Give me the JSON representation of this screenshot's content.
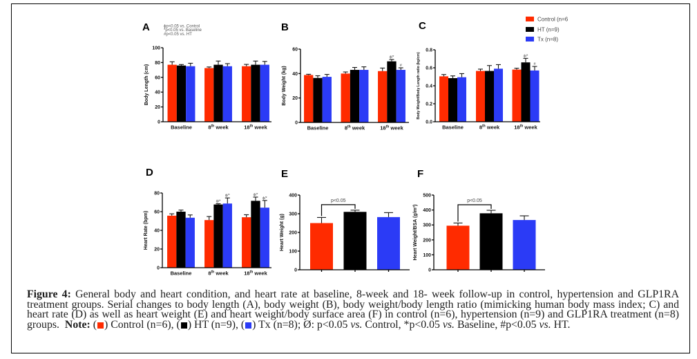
{
  "figure": {
    "legend": {
      "placement": "top-right",
      "items": [
        {
          "label": "Control (n=6",
          "color": "#ff2b00"
        },
        {
          "label": "HT (n=9)",
          "color": "#000000"
        },
        {
          "label": "Tx (n=8)",
          "color": "#2b3bf6"
        }
      ]
    }
  },
  "chart_data": [
    {
      "panel": "A",
      "type": "bar",
      "title": "A",
      "ylabel": "Body Length (cm)",
      "xlabel": "",
      "ylim": [
        0,
        100
      ],
      "yticks": [
        0,
        20,
        40,
        60,
        80,
        100
      ],
      "ytick_labels": [
        "0",
        "20",
        "40",
        "60",
        "80",
        "100"
      ],
      "grid": false,
      "categories": [
        {
          "label": "Baseline",
          "sup": "",
          "suffix": ""
        },
        {
          "label": "8",
          "sup": "th",
          "suffix": " week"
        },
        {
          "label": "18",
          "sup": "th",
          "suffix": " week"
        }
      ],
      "notes": [
        "ϕp<0.05 vs. Control",
        "*p<0.05 vs. Baseline",
        "#p<0.05 vs. HT"
      ],
      "series": [
        {
          "name": "Control (n=6)",
          "key": "control",
          "color": "#ff2b00",
          "values": [
            77,
            72.5,
            75
          ],
          "errors": [
            4,
            1.5,
            2.5
          ],
          "annotations": [
            "",
            "",
            ""
          ]
        },
        {
          "name": "HT (n=9)",
          "key": "ht",
          "color": "#000000",
          "values": [
            76,
            77,
            77
          ],
          "errors": [
            1.3,
            5,
            5
          ],
          "annotations": [
            "",
            "",
            ""
          ]
        },
        {
          "name": "Tx (n=8)",
          "key": "tx",
          "color": "#2b3bf6",
          "values": [
            75,
            75,
            77
          ],
          "errors": [
            4,
            3.5,
            4.5
          ],
          "annotations": [
            "",
            "",
            ""
          ]
        }
      ]
    },
    {
      "panel": "B",
      "type": "bar",
      "title": "B",
      "ylabel": "Body Weight (kg)",
      "xlabel": "",
      "ylim": [
        0,
        60
      ],
      "yticks": [
        0,
        20,
        40,
        60
      ],
      "ytick_labels": [
        "0",
        "20",
        "40",
        "60"
      ],
      "grid": false,
      "categories": [
        {
          "label": "Baseline",
          "sup": "",
          "suffix": ""
        },
        {
          "label": "8",
          "sup": "th",
          "suffix": " week"
        },
        {
          "label": "18",
          "sup": "th",
          "suffix": " week"
        }
      ],
      "series": [
        {
          "name": "Control (n=6)",
          "key": "control",
          "color": "#ff2b00",
          "values": [
            38.8,
            40,
            42
          ],
          "errors": [
            0.6,
            1.3,
            2.5
          ],
          "annotations": [
            "",
            "",
            ""
          ]
        },
        {
          "name": "HT (n=9)",
          "key": "ht",
          "color": "#000000",
          "values": [
            36.4,
            43,
            50
          ],
          "errors": [
            1.8,
            2,
            1.5
          ],
          "annotations": [
            "",
            "",
            "ϕ/*"
          ]
        },
        {
          "name": "Tx (n=8)",
          "key": "tx",
          "color": "#2b3bf6",
          "values": [
            37.3,
            43,
            43
          ],
          "errors": [
            2,
            2.5,
            1.7
          ],
          "annotations": [
            "",
            "",
            "#"
          ]
        }
      ]
    },
    {
      "panel": "C",
      "type": "bar",
      "title": "C",
      "ylabel": "Body Weight/Body Length ratio (kg/cm)",
      "xlabel": "",
      "ylim": [
        0,
        0.8
      ],
      "yticks": [
        0,
        0.2,
        0.4,
        0.6,
        0.8
      ],
      "ytick_labels": [
        "0.0",
        "0.2",
        "0.4",
        "0.6",
        "0.8"
      ],
      "grid": false,
      "categories": [
        {
          "label": "Baseline",
          "sup": "",
          "suffix": ""
        },
        {
          "label": "8",
          "sup": "th",
          "suffix": " week"
        },
        {
          "label": "18",
          "sup": "th",
          "suffix": " week"
        }
      ],
      "series": [
        {
          "name": "Control (n=6)",
          "key": "control",
          "color": "#ff2b00",
          "values": [
            0.505,
            0.565,
            0.58
          ],
          "errors": [
            0.02,
            0.02,
            0.015
          ],
          "annotations": [
            "",
            "",
            ""
          ]
        },
        {
          "name": "HT (n=9)",
          "key": "ht",
          "color": "#000000",
          "values": [
            0.485,
            0.565,
            0.66
          ],
          "errors": [
            0.025,
            0.06,
            0.045
          ],
          "annotations": [
            "",
            "",
            "ϕ/*"
          ]
        },
        {
          "name": "Tx (n=8)",
          "key": "tx",
          "color": "#2b3bf6",
          "values": [
            0.495,
            0.59,
            0.57
          ],
          "errors": [
            0.04,
            0.045,
            0.045
          ],
          "annotations": [
            "",
            "",
            "#"
          ]
        }
      ]
    },
    {
      "panel": "D",
      "type": "bar",
      "title": "D",
      "ylabel": "Heart Rate (bpm)",
      "xlabel": "",
      "ylim": [
        0,
        80
      ],
      "yticks": [
        0,
        20,
        40,
        60,
        80
      ],
      "ytick_labels": [
        "0",
        "20",
        "40",
        "60",
        "80"
      ],
      "grid": false,
      "categories": [
        {
          "label": "Baseline",
          "sup": "",
          "suffix": ""
        },
        {
          "label": "8",
          "sup": "th",
          "suffix": " week"
        },
        {
          "label": "18",
          "sup": "th",
          "suffix": " week"
        }
      ],
      "series": [
        {
          "name": "Control (n=6)",
          "key": "control",
          "color": "#ff2b00",
          "values": [
            55.7,
            51,
            54
          ],
          "errors": [
            2,
            3.8,
            2.7
          ],
          "annotations": [
            "",
            "",
            ""
          ]
        },
        {
          "name": "HT (n=9)",
          "key": "ht",
          "color": "#000000",
          "values": [
            60,
            67.7,
            71.6
          ],
          "errors": [
            1.7,
            0.8,
            4
          ],
          "annotations": [
            "",
            "ϕ/*",
            "ϕ/*"
          ]
        },
        {
          "name": "Tx (n=8)",
          "key": "tx",
          "color": "#2b3bf6",
          "values": [
            53.5,
            68.7,
            64.3
          ],
          "errors": [
            3,
            6,
            7.7
          ],
          "annotations": [
            "",
            "ϕ/*",
            "ϕ/*"
          ]
        }
      ]
    },
    {
      "panel": "E",
      "type": "bar",
      "title": "E",
      "ylabel": "Heart Weight (g)",
      "xlabel": "",
      "ylim": [
        0,
        400
      ],
      "yticks": [
        0,
        100,
        200,
        300,
        400
      ],
      "ytick_labels": [
        "0",
        "100",
        "200",
        "300",
        "400"
      ],
      "grid": false,
      "categories": [],
      "bracket": {
        "from": 0,
        "to": 1,
        "label": "p<0.05"
      },
      "series": [
        {
          "name": "Control (n=6)",
          "key": "control",
          "color": "#ff2b00",
          "values": [
            250
          ],
          "errors": [
            30
          ],
          "annotations": [
            ""
          ]
        },
        {
          "name": "HT (n=9)",
          "key": "ht",
          "color": "#000000",
          "values": [
            310
          ],
          "errors": [
            9
          ],
          "annotations": [
            ""
          ]
        },
        {
          "name": "Tx (n=8)",
          "key": "tx",
          "color": "#2b3bf6",
          "values": [
            282
          ],
          "errors": [
            24
          ],
          "annotations": [
            ""
          ]
        }
      ]
    },
    {
      "panel": "F",
      "type": "bar",
      "title": "F",
      "ylabel": "Heart Weight/BSA (g/m²)",
      "xlabel": "",
      "ylim": [
        0,
        500
      ],
      "yticks": [
        0,
        100,
        200,
        300,
        400,
        500
      ],
      "ytick_labels": [
        "0",
        "100",
        "200",
        "300",
        "400",
        "500"
      ],
      "grid": false,
      "categories": [],
      "bracket": {
        "from": 0,
        "to": 1,
        "label": "p<0.05"
      },
      "series": [
        {
          "name": "Control (n=6)",
          "key": "control",
          "color": "#ff2b00",
          "values": [
            295
          ],
          "errors": [
            18
          ],
          "annotations": [
            ""
          ]
        },
        {
          "name": "HT (n=9)",
          "key": "ht",
          "color": "#000000",
          "values": [
            378
          ],
          "errors": [
            20
          ],
          "annotations": [
            ""
          ]
        },
        {
          "name": "Tx (n=8)",
          "key": "tx",
          "color": "#2b3bf6",
          "values": [
            333
          ],
          "errors": [
            28
          ],
          "annotations": [
            ""
          ]
        }
      ]
    }
  ],
  "caption": {
    "label": "Figure 4:",
    "body": "General body and heart condition, and heart rate at baseline, 8-week and 18- week follow-up in control, hypertension and GLP1RA treatment groups. Serial changes to body length (A), body weight (B), body weight/body length ratio (mimicking human body mass index; C) and heart rate (D) as well as heart weight (E) and heart weight/body surface area (F) in control (n=6), hypertension (n=9) and GLP1RA treatment (n=8) groups.",
    "note_label": "Note:",
    "paren_open": "(",
    "paren_close": ")",
    "note_items": [
      {
        "text": "Control (n=6),",
        "color": "#ff2b00"
      },
      {
        "text": "HT (n=9),",
        "color": "#000000"
      },
      {
        "text": "Tx (n=8);",
        "color": "#2b3bf6"
      }
    ],
    "note_tail": [
      "Ø: p<0.05",
      "vs.",
      "Control, *p<0.05",
      "vs.",
      "Baseline, #p<0.05",
      "vs.",
      "HT."
    ]
  }
}
